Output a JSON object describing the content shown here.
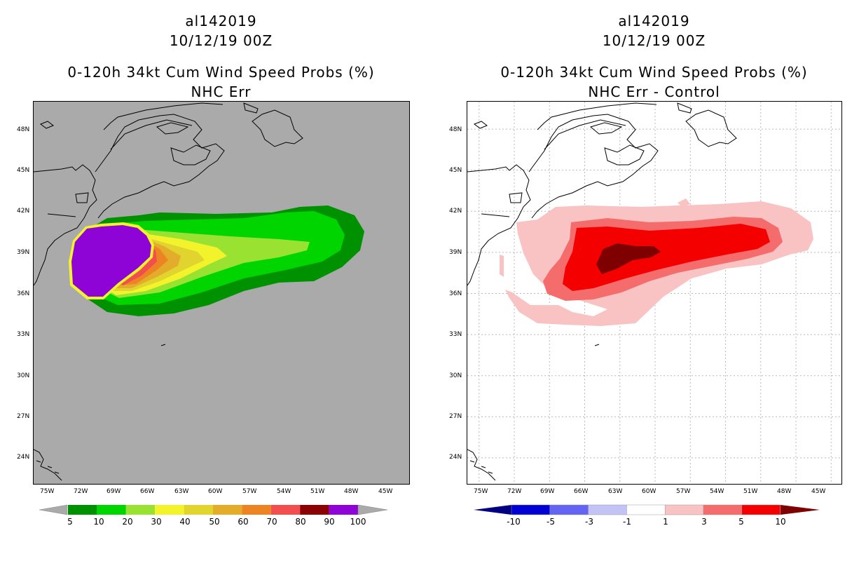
{
  "left_panel": {
    "storm_id": "al142019",
    "datetime": "10/12/19 00Z",
    "product": "0-120h 34kt Cum Wind Speed Probs (%)",
    "subtitle": "NHC Err",
    "background_color": "#aaaaaa",
    "colorbar": {
      "levels": [
        "5",
        "10",
        "20",
        "30",
        "40",
        "50",
        "60",
        "70",
        "80",
        "90",
        "100"
      ],
      "colors": [
        "#009100",
        "#00d500",
        "#9ae232",
        "#f3f32c",
        "#e2d42e",
        "#e3ad2b",
        "#ec8423",
        "#f14f4f",
        "#8a0202",
        "#8e03d6"
      ],
      "end_color": "#aaaaaa"
    }
  },
  "right_panel": {
    "storm_id": "al142019",
    "datetime": "10/12/19 00Z",
    "product": "0-120h 34kt Cum Wind Speed Probs (%)",
    "subtitle": "NHC Err - Control",
    "background_color": "#ffffff",
    "colorbar": {
      "levels": [
        "-10",
        "-5",
        "-3",
        "-1",
        "1",
        "3",
        "5",
        "10"
      ],
      "colors": [
        "#0000d4",
        "#6464f3",
        "#c3c3f5",
        "#ffffff",
        "#f9c3c3",
        "#f46c6c",
        "#f50000",
        "#7e0000"
      ],
      "left_end_color": "#000080",
      "right_end_color": "#7e0000"
    }
  },
  "axes": {
    "lat_labels": [
      "48N",
      "45N",
      "42N",
      "39N",
      "36N",
      "33N",
      "30N",
      "27N",
      "24N"
    ],
    "lon_labels": [
      "75W",
      "72W",
      "69W",
      "66W",
      "63W",
      "60W",
      "57W",
      "54W",
      "51W",
      "48W",
      "45W"
    ],
    "lon_range": [
      -76,
      -44
    ],
    "lat_range": [
      22,
      50
    ]
  }
}
